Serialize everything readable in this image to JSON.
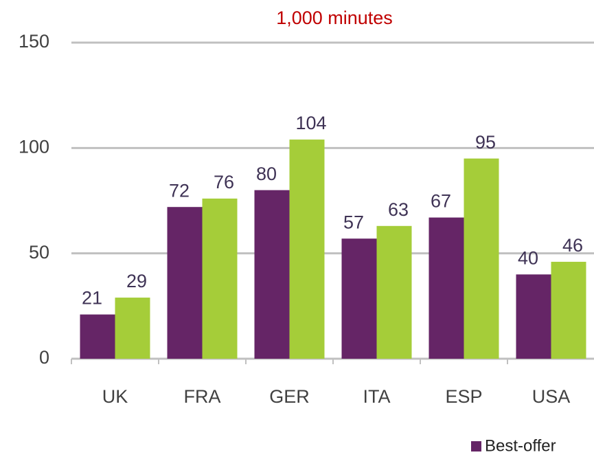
{
  "chart_data": {
    "type": "bar",
    "title": "1,000 minutes",
    "categories": [
      "UK",
      "FRA",
      "GER",
      "ITA",
      "ESP",
      "USA"
    ],
    "series": [
      {
        "name": "Best-offer",
        "color": "#652566",
        "values": [
          21,
          72,
          80,
          57,
          67,
          40
        ]
      },
      {
        "color": "#a5cd39",
        "values": [
          29,
          76,
          104,
          63,
          95,
          46
        ]
      }
    ],
    "ylim": [
      0,
      150
    ],
    "yticks": [
      0,
      50,
      100,
      150
    ],
    "grid": true
  }
}
